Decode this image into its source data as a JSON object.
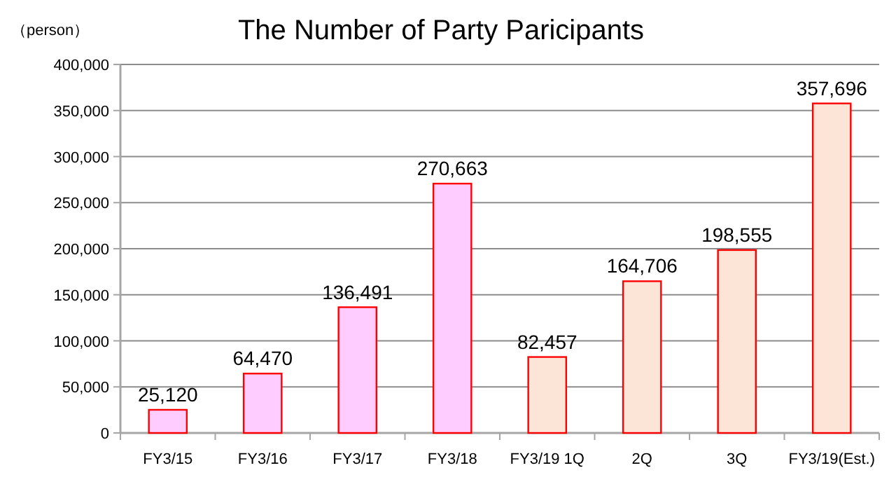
{
  "chart_data": {
    "type": "bar",
    "title": "The Number of Party Paricipants",
    "ylabel": "（person）",
    "categories": [
      "FY3/15",
      "FY3/16",
      "FY3/17",
      "FY3/18",
      "FY3/19 1Q",
      "2Q",
      "3Q",
      "FY3/19(Est.)"
    ],
    "values": [
      25120,
      64470,
      136491,
      270663,
      82457,
      164706,
      198555,
      357696
    ],
    "colors": [
      "#ffccff",
      "#ffccff",
      "#ffccff",
      "#ffccff",
      "#fce4d6",
      "#fce4d6",
      "#fce4d6",
      "#fce4d6"
    ],
    "value_labels": [
      "25,120",
      "64,470",
      "136,491",
      "270,663",
      "82,457",
      "164,706",
      "198,555",
      "357,696"
    ],
    "ylim": [
      0,
      400000
    ],
    "yticks": [
      0,
      {
        "value": 50000,
        "label": "50,000"
      },
      {
        "value": 100000,
        "label": "100,000"
      },
      {
        "value": 150000,
        "label": "150,000"
      },
      {
        "value": 200000,
        "label": "200,000"
      },
      {
        "value": 250000,
        "label": "250,000"
      },
      {
        "value": 300000,
        "label": "300,000"
      },
      {
        "value": 350000,
        "label": "350,000"
      },
      {
        "value": 400000,
        "label": "400,000"
      }
    ],
    "grid": "y"
  }
}
